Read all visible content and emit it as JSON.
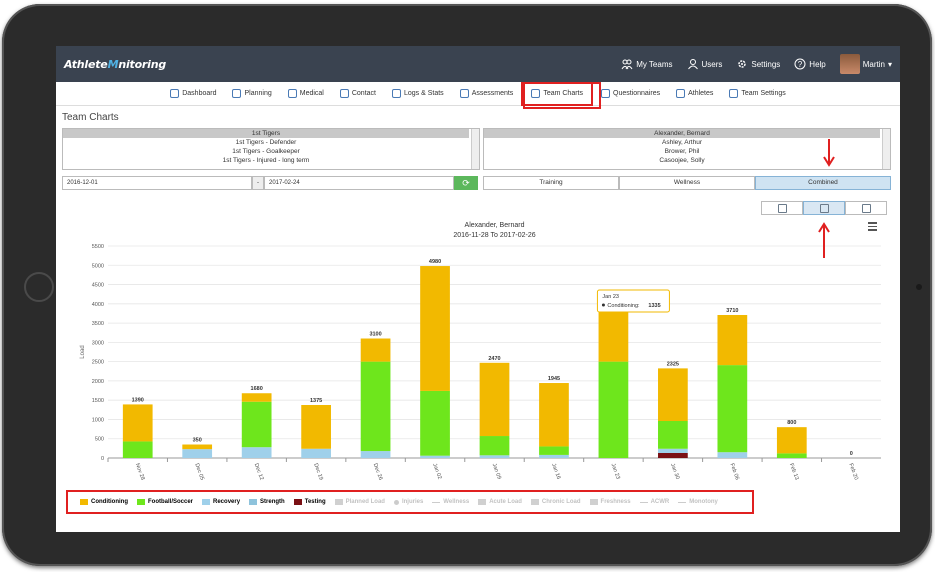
{
  "app": {
    "logo_a": "Athlete",
    "logo_b": "M",
    "logo_c": "nitoring"
  },
  "topbar": {
    "my_teams": "My Teams",
    "users": "Users",
    "settings": "Settings",
    "help": "Help",
    "user": "Martin"
  },
  "nav": [
    "Dashboard",
    "Planning",
    "Medical",
    "Contact",
    "Logs & Stats",
    "Assessments",
    "Team Charts",
    "Questionnaires",
    "Athletes",
    "Team Settings"
  ],
  "page_title": "Team Charts",
  "teams": [
    "1st Tigers",
    "1st Tigers - Defender",
    "1st Tigers - Goalkeeper",
    "1st Tigers - Injured - long term"
  ],
  "athletes": [
    "Alexander, Bernard",
    "Ashley, Arthur",
    "Brower, Phil",
    "Casoojee, Solly"
  ],
  "date_from": "2016-12-01",
  "date_sep": "-",
  "date_to": "2017-02-24",
  "refresh": "⟳",
  "views": [
    "Training",
    "Wellness",
    "Combined"
  ],
  "colors": {
    "conditioning": "#f2b900",
    "football": "#6ee61c",
    "recovery": "#9fd0ea",
    "strength": "#8ec3dc",
    "testing": "#7a1014"
  },
  "chart_data": {
    "type": "bar",
    "title": "Alexander, Bernard",
    "subtitle": "2016-11-28 To 2017-02-26",
    "ylabel": "Load",
    "ylim": [
      0,
      5500
    ],
    "yticks": [
      0,
      500,
      1000,
      1500,
      2000,
      2500,
      3000,
      3500,
      4000,
      4500,
      5000,
      5500
    ],
    "categories": [
      "Nov 28",
      "Dec 05",
      "Dec 12",
      "Dec 19",
      "Dec 26",
      "Jan 02",
      "Jan 09",
      "Jan 16",
      "Jan 23",
      "Jan 30",
      "Feb 06",
      "Feb 13",
      "Feb 20"
    ],
    "totals": [
      1390,
      350,
      1680,
      1375,
      3100,
      4980,
      2470,
      1945,
      null,
      2325,
      3710,
      800,
      0
    ],
    "series": [
      {
        "name": "Testing",
        "values": [
          0,
          0,
          0,
          0,
          0,
          0,
          0,
          0,
          0,
          130,
          0,
          0,
          0
        ]
      },
      {
        "name": "Recovery",
        "values": [
          0,
          230,
          280,
          240,
          180,
          60,
          70,
          80,
          0,
          110,
          150,
          0,
          0
        ]
      },
      {
        "name": "Football/Soccer",
        "values": [
          430,
          0,
          1180,
          0,
          2320,
          1680,
          500,
          220,
          2500,
          720,
          2260,
          120,
          0
        ]
      },
      {
        "name": "Conditioning",
        "values": [
          960,
          120,
          220,
          1135,
          600,
          3240,
          1900,
          1645,
          1335,
          1365,
          1300,
          680,
          0
        ]
      }
    ],
    "tooltip": {
      "date": "Jan 23",
      "label": "Conditioning:",
      "value": "1335"
    }
  },
  "legend": [
    {
      "label": "Conditioning",
      "kind": "sw",
      "color": "#f2b900",
      "dim": false
    },
    {
      "label": "Football/Soccer",
      "kind": "sw",
      "color": "#6ee61c",
      "dim": false
    },
    {
      "label": "Recovery",
      "kind": "sw",
      "color": "#9fd0ea",
      "dim": false
    },
    {
      "label": "Strength",
      "kind": "sw",
      "color": "#8ec3dc",
      "dim": false
    },
    {
      "label": "Testing",
      "kind": "sw",
      "color": "#7a1014",
      "dim": false
    },
    {
      "label": "Planned Load",
      "kind": "sw",
      "color": "#d0d0d0",
      "dim": true
    },
    {
      "label": "Injuries",
      "kind": "dot",
      "color": "#d0d0d0",
      "dim": true
    },
    {
      "label": "Wellness",
      "kind": "ln",
      "color": "#d0d0d0",
      "dim": true
    },
    {
      "label": "Acute Load",
      "kind": "sw",
      "color": "#d0d0d0",
      "dim": true
    },
    {
      "label": "Chronic Load",
      "kind": "sw",
      "color": "#d0d0d0",
      "dim": true
    },
    {
      "label": "Freshness",
      "kind": "sw",
      "color": "#d0d0d0",
      "dim": true
    },
    {
      "label": "ACWR",
      "kind": "ln",
      "color": "#d0d0d0",
      "dim": true
    },
    {
      "label": "Monotony",
      "kind": "ln",
      "color": "#d0d0d0",
      "dim": true
    }
  ]
}
